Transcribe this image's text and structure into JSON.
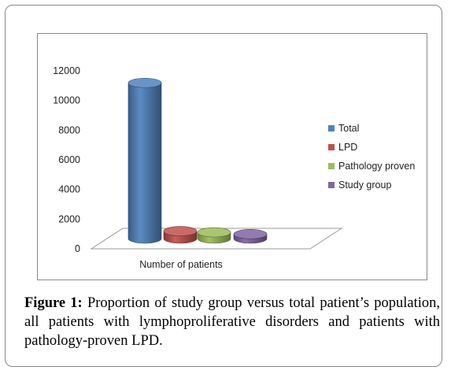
{
  "chart_data": {
    "type": "bar",
    "categories": [
      "Number of patients"
    ],
    "xlabel": "Number of patients",
    "ylabel": "",
    "ylim": [
      0,
      12000
    ],
    "yticks": [
      0,
      2000,
      4000,
      6000,
      8000,
      10000,
      12000
    ],
    "grid": false,
    "legend_position": "right",
    "three_d": true,
    "series": [
      {
        "name": "Total",
        "values": [
          10500
        ],
        "color": "#4f81bd"
      },
      {
        "name": "LPD",
        "values": [
          500
        ],
        "color": "#c0504d"
      },
      {
        "name": "Pathology proven",
        "values": [
          420
        ],
        "color": "#9bbb59"
      },
      {
        "name": "Study group",
        "values": [
          300
        ],
        "color": "#8064a2"
      }
    ]
  },
  "caption": {
    "label": "Figure 1:",
    "text": "Proportion of study group versus total patient’s population, all patients with lymphoproliferative disorders and patients with pathology-proven LPD."
  }
}
